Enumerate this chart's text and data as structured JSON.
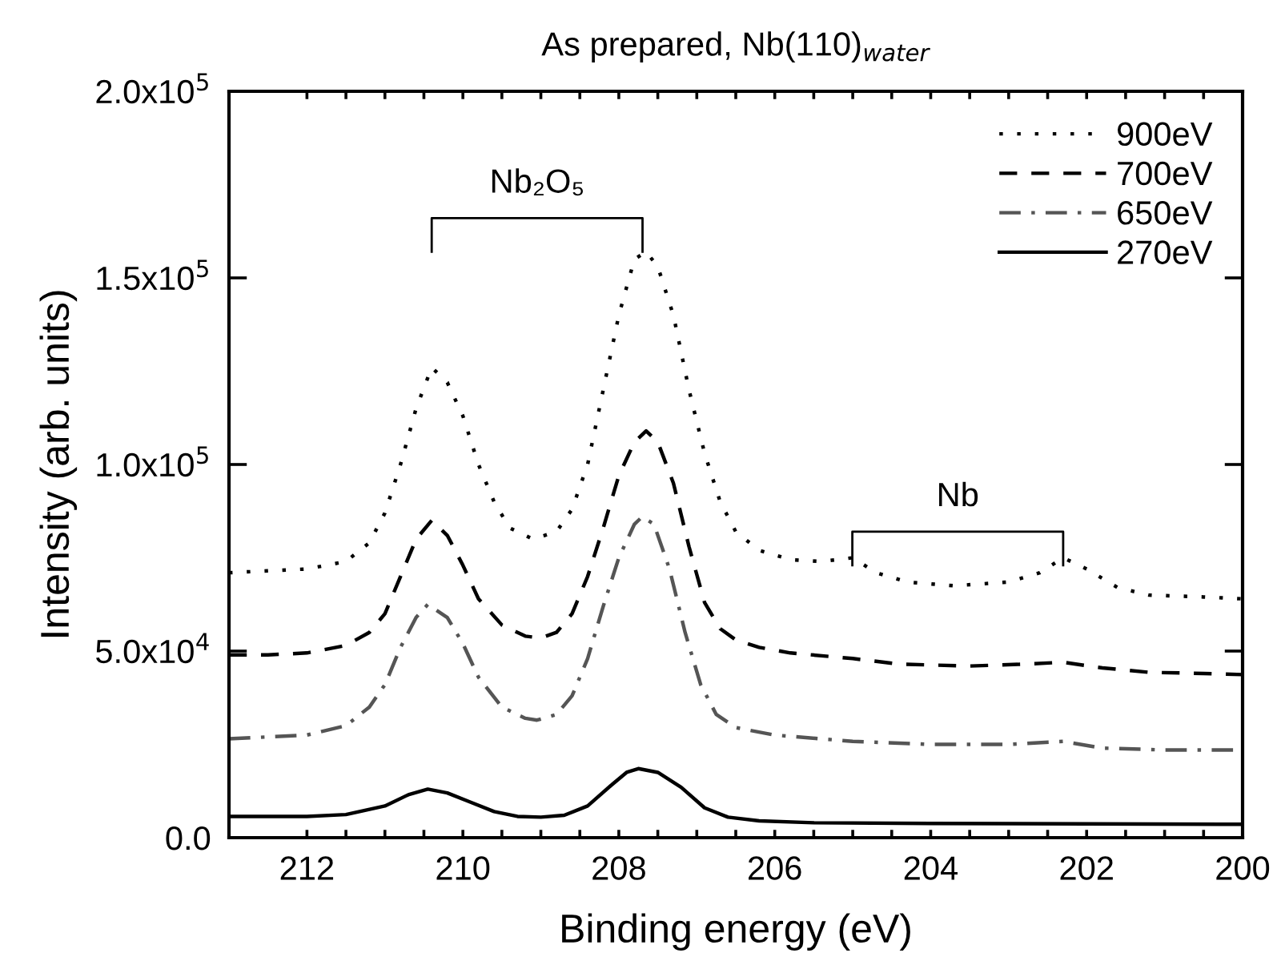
{
  "chart_data": {
    "type": "line",
    "title": "As prepared, Nb(110)$_{water}$",
    "xlabel": "Binding energy (eV)",
    "ylabel": "Intensity (arb. units)",
    "xlim": [
      213,
      200
    ],
    "ylim": [
      0,
      200000
    ],
    "xticks": [
      212,
      {
        "value": 211.5,
        "label": null
      },
      {
        "value": 211,
        "label": null
      },
      {
        "value": 210.5,
        "label": null
      },
      210,
      {
        "value": 209.5,
        "label": null
      },
      {
        "value": 209,
        "label": null
      },
      {
        "value": 208.5,
        "label": null
      },
      208,
      {
        "value": 207.5,
        "label": null
      },
      {
        "value": 207,
        "label": null
      },
      {
        "value": 206.5,
        "label": null
      },
      206,
      {
        "value": 205.5,
        "label": null
      },
      {
        "value": 205,
        "label": null
      },
      {
        "value": 204.5,
        "label": null
      },
      204,
      {
        "value": 203.5,
        "label": null
      },
      {
        "value": 203,
        "label": null
      },
      {
        "value": 202.5,
        "label": null
      },
      202,
      {
        "value": 201.5,
        "label": null
      },
      {
        "value": 201,
        "label": null
      },
      {
        "value": 200.5,
        "label": null
      },
      200
    ],
    "yticks": [
      {
        "value": 0,
        "label": "0.0"
      },
      {
        "value": 50000,
        "label": "5.0x10$^{4}$"
      },
      {
        "value": 100000,
        "label": "1.0x10$^{5}$"
      },
      {
        "value": 150000,
        "label": "1.5x10$^{5}$"
      },
      {
        "value": 200000,
        "label": "2.0x10$^{5}$"
      }
    ],
    "grid": false,
    "legend": "top right",
    "annotations": [
      "Nb₂O₅",
      "Nb"
    ],
    "series": [
      {
        "name": "900eV",
        "color": "#000000",
        "line_style": "dotted",
        "x": [
          213,
          212.5,
          212,
          211.5,
          211.2,
          211,
          210.8,
          210.6,
          210.4,
          210.2,
          210,
          209.8,
          209.6,
          209.4,
          209.1,
          208.8,
          208.6,
          208.4,
          208.2,
          208.0,
          207.8,
          207.65,
          207.5,
          207.3,
          207.1,
          206.9,
          206.7,
          206.5,
          206.2,
          205.8,
          205.4,
          205.0,
          204.7,
          204.3,
          203.7,
          203.0,
          202.6,
          202.3,
          202.0,
          201.6,
          201.2,
          200.5,
          200
        ],
        "values": [
          71000,
          71500,
          72000,
          74000,
          79000,
          87000,
          100000,
          115000,
          126000,
          122000,
          113000,
          100000,
          90000,
          83000,
          80000,
          82000,
          88000,
          100000,
          120000,
          140000,
          155000,
          157000,
          153000,
          140000,
          120000,
          103000,
          90000,
          82000,
          77000,
          74500,
          74000,
          75000,
          71000,
          68500,
          67500,
          68500,
          71000,
          75000,
          72000,
          67000,
          65000,
          64500,
          64000
        ]
      },
      {
        "name": "700eV",
        "color": "#000000",
        "line_style": "dashed",
        "x": [
          213,
          212.5,
          212,
          211.5,
          211.2,
          211,
          210.8,
          210.6,
          210.4,
          210.2,
          210,
          209.8,
          209.5,
          209.2,
          209.0,
          208.8,
          208.6,
          208.4,
          208.2,
          208.0,
          207.8,
          207.65,
          207.5,
          207.3,
          207.1,
          206.9,
          206.7,
          206.5,
          206.2,
          205.8,
          205.0,
          204.4,
          203.5,
          202.8,
          202.3,
          201.8,
          201.2,
          200.5,
          200
        ],
        "values": [
          49000,
          49000,
          49500,
          51500,
          55000,
          60000,
          70000,
          80000,
          85000,
          81000,
          73000,
          64000,
          57000,
          54000,
          53500,
          55000,
          60000,
          70000,
          83000,
          97000,
          106000,
          109000,
          106000,
          95000,
          78000,
          63000,
          56000,
          53000,
          51000,
          49500,
          48000,
          46500,
          46000,
          46500,
          47000,
          45500,
          44300,
          44000,
          43700
        ]
      },
      {
        "name": "650eV",
        "color": "#555555",
        "line_style": "dashdot",
        "x": [
          213,
          212.5,
          212,
          211.5,
          211.2,
          211,
          210.8,
          210.6,
          210.45,
          210.2,
          210,
          209.8,
          209.5,
          209.2,
          209.05,
          208.8,
          208.6,
          208.4,
          208.2,
          208.0,
          207.8,
          207.7,
          207.55,
          207.35,
          207.15,
          206.95,
          206.75,
          206.5,
          206.0,
          205.0,
          204.0,
          203.0,
          202.3,
          201.8,
          201.0,
          200
        ],
        "values": [
          26500,
          27000,
          27500,
          30000,
          35000,
          41000,
          51000,
          59000,
          62500,
          59000,
          52000,
          43000,
          35000,
          32000,
          31500,
          33000,
          38000,
          48000,
          62000,
          75000,
          84000,
          86000,
          84000,
          72000,
          55000,
          41000,
          33000,
          29500,
          27500,
          25800,
          25000,
          25000,
          25800,
          24000,
          23500,
          23500
        ]
      },
      {
        "name": "270eV",
        "color": "#000000",
        "line_style": "solid",
        "x": [
          213,
          212,
          211.5,
          211,
          210.7,
          210.45,
          210.2,
          209.9,
          209.6,
          209.3,
          209.0,
          208.7,
          208.4,
          208.1,
          207.9,
          207.75,
          207.5,
          207.2,
          206.9,
          206.6,
          206.2,
          205.5,
          204,
          202,
          200
        ],
        "values": [
          5700,
          5700,
          6200,
          8500,
          11500,
          13000,
          12000,
          9500,
          7000,
          5700,
          5500,
          6000,
          8500,
          14000,
          17500,
          18500,
          17500,
          13500,
          8000,
          5500,
          4500,
          4000,
          3800,
          3700,
          3600
        ]
      }
    ]
  }
}
